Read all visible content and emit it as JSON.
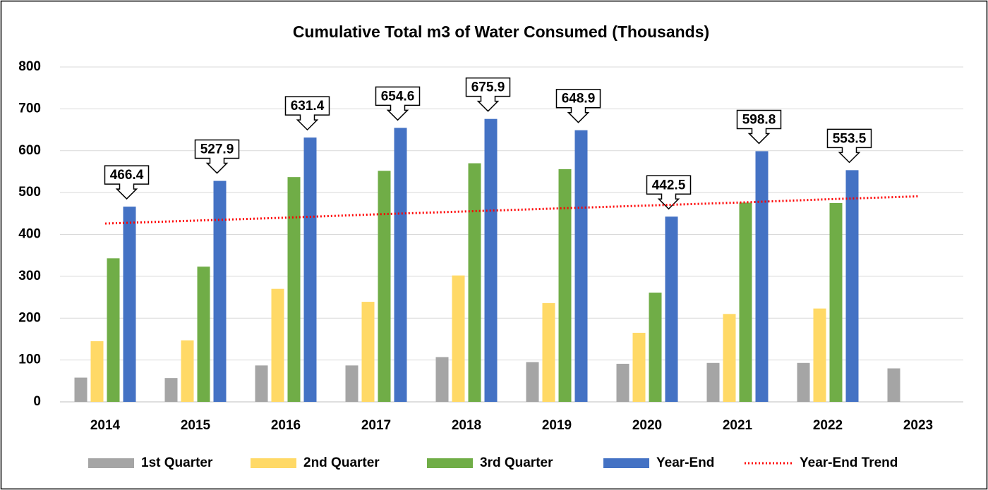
{
  "chart_data": {
    "type": "bar",
    "title": "Cumulative Total m3 of Water Consumed (Thousands)",
    "categories": [
      "2014",
      "2015",
      "2016",
      "2017",
      "2018",
      "2019",
      "2020",
      "2021",
      "2022",
      "2023"
    ],
    "series": [
      {
        "name": "1st Quarter",
        "color": "#a5a5a5",
        "values": [
          58,
          57,
          87,
          87,
          107,
          95,
          91,
          93,
          93,
          80
        ]
      },
      {
        "name": "2nd Quarter",
        "color": "#ffd966",
        "values": [
          145,
          147,
          270,
          239,
          302,
          236,
          165,
          210,
          223,
          null
        ]
      },
      {
        "name": "3rd Quarter",
        "color": "#70ad47",
        "values": [
          343,
          323,
          537,
          552,
          570,
          556,
          261,
          476,
          475,
          null
        ]
      },
      {
        "name": "Year-End",
        "color": "#4472c4",
        "values": [
          466.4,
          527.9,
          631.4,
          654.6,
          675.9,
          648.9,
          442.5,
          598.8,
          553.5,
          null
        ]
      },
      {
        "name": "Year-End Trend",
        "color": "#ff0000",
        "type": "line",
        "values": [
          426,
          433,
          440,
          448,
          455,
          462,
          469,
          476,
          484,
          491
        ]
      }
    ],
    "ylim": [
      0,
      800
    ],
    "yticks": [
      0,
      100,
      200,
      300,
      400,
      500,
      600,
      700,
      800
    ],
    "grid": true,
    "legend": "bottom"
  }
}
